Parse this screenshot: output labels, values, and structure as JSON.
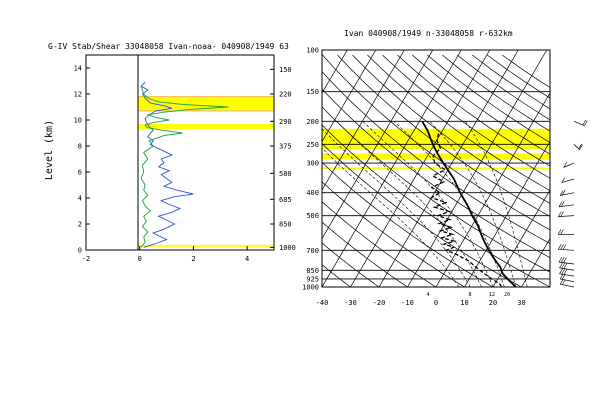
{
  "colors": {
    "background": "#ffffff",
    "highlight": "#ffff00",
    "highlight_edge": "#f5c060",
    "stability": "#2a55d6",
    "shear": "#1aa040",
    "axes": "#000000"
  },
  "chart_data": [
    {
      "type": "line",
      "title": "G-IV Stab/Shear 33048058 Ivan-noaa- 040908/1949 63",
      "ylabel": "Level (km)",
      "xlim": [
        -2,
        5
      ],
      "ylim": [
        0,
        15
      ],
      "x_ticks": [
        "-2",
        "0",
        "2",
        "4"
      ],
      "y_ticks": [
        "0",
        "2",
        "4",
        "6",
        "8",
        "10",
        "12",
        "14"
      ],
      "right_ticks": [
        {
          "label": "1000",
          "km": 0.2
        },
        {
          "label": "850",
          "km": 2.0
        },
        {
          "label": "685",
          "km": 3.9
        },
        {
          "label": "580",
          "km": 5.9
        },
        {
          "label": "375",
          "km": 8.0
        },
        {
          "label": "290",
          "km": 9.9
        },
        {
          "label": "220",
          "km": 12.0
        },
        {
          "label": "150",
          "km": 13.9
        }
      ],
      "highlight_bands_km": [
        [
          10.7,
          11.8
        ],
        [
          9.3,
          9.7
        ],
        [
          0.25,
          0.4
        ]
      ],
      "series": [
        {
          "color": "#2a55d6",
          "km": [
            0.2,
            0.5,
            0.8,
            1.0,
            1.3,
            1.6,
            2.0,
            2.3,
            2.6,
            2.9,
            3.2,
            3.5,
            3.8,
            4.1,
            4.3,
            4.6,
            4.9,
            5.2,
            5.5,
            5.8,
            6.1,
            6.4,
            6.7,
            7.0,
            7.3,
            7.6,
            7.9,
            8.1,
            8.4,
            8.7,
            9.0,
            9.2,
            9.5,
            9.8,
            10.1,
            10.4,
            10.7,
            10.9,
            11.1,
            11.3,
            11.5,
            11.7,
            12.0,
            12.3,
            12.6,
            12.9
          ],
          "values": [
            0.15,
            0.6,
            1.0,
            0.8,
            0.5,
            0.9,
            1.3,
            1.0,
            0.7,
            1.2,
            1.5,
            1.1,
            0.8,
            1.3,
            2.0,
            1.4,
            0.9,
            1.2,
            1.0,
            0.8,
            1.1,
            0.7,
            0.9,
            0.8,
            1.2,
            0.9,
            0.6,
            0.4,
            0.5,
            0.3,
            0.4,
            0.5,
            0.35,
            0.25,
            0.2,
            0.35,
            0.6,
            1.2,
            0.9,
            0.4,
            0.3,
            0.2,
            0.1,
            0.3,
            0.05,
            0.2
          ]
        },
        {
          "color": "#1aa040",
          "km": [
            0.2,
            0.6,
            1.0,
            1.4,
            1.8,
            2.2,
            2.6,
            3.0,
            3.4,
            3.8,
            4.2,
            4.6,
            5.0,
            5.5,
            6.0,
            6.5,
            7.0,
            7.5,
            8.0,
            8.4,
            8.8,
            9.0,
            9.2,
            9.4,
            9.6,
            9.8,
            10.0,
            10.2,
            10.4,
            10.6,
            10.8,
            11.0,
            11.2,
            11.4,
            11.6,
            11.8,
            12.0,
            12.3,
            12.6
          ],
          "values": [
            0.05,
            0.2,
            0.15,
            0.3,
            0.1,
            0.25,
            0.15,
            0.4,
            0.2,
            0.1,
            0.3,
            0.15,
            0.2,
            0.05,
            0.15,
            0.1,
            0.3,
            0.15,
            0.5,
            0.35,
            0.9,
            1.6,
            0.9,
            0.3,
            0.2,
            0.5,
            1.1,
            0.6,
            0.3,
            0.9,
            1.8,
            3.3,
            1.6,
            0.7,
            0.4,
            0.25,
            0.15,
            0.1,
            0.05
          ]
        }
      ]
    },
    {
      "type": "line",
      "title": "Ivan 040908/1949 n-33048058 r-632km",
      "xlim": [
        -40,
        40
      ],
      "x_ticks": [
        "-40",
        "-30",
        "-20",
        "-10",
        "0",
        "10",
        "20",
        "30"
      ],
      "isobars": [
        {
          "p": 100,
          "label": "100"
        },
        {
          "p": 150,
          "label": "150"
        },
        {
          "p": 200,
          "label": "200"
        },
        {
          "p": 250,
          "label": "250"
        },
        {
          "p": 300,
          "label": "300"
        },
        {
          "p": 400,
          "label": "400"
        },
        {
          "p": 500,
          "label": "500"
        },
        {
          "p": 700,
          "label": "700"
        },
        {
          "p": 850,
          "label": "850"
        },
        {
          "p": 925,
          "label": "925"
        },
        {
          "p": 1000,
          "label": "1000"
        }
      ],
      "highlight_bands_hpa": [
        [
          215,
          262
        ],
        [
          273,
          290
        ],
        [
          313,
          318
        ]
      ],
      "mixing_ratio_labels": [
        "4",
        "8",
        "12",
        "20"
      ],
      "temperature": {
        "p": [
          1000,
          975,
          950,
          925,
          900,
          875,
          850,
          825,
          800,
          775,
          750,
          725,
          700,
          650,
          600,
          550,
          500,
          450,
          400,
          350,
          300,
          280,
          260,
          240,
          220,
          200
        ],
        "t": [
          28,
          26.5,
          25,
          23.5,
          22,
          20.5,
          19.5,
          18.5,
          17,
          15.5,
          14,
          12.5,
          11,
          8,
          5,
          2,
          -2,
          -6,
          -11,
          -16,
          -23,
          -26,
          -29,
          -32,
          -35,
          -39
        ]
      },
      "dewpoint": {
        "p": [
          1000,
          975,
          950,
          925,
          900,
          875,
          850,
          825,
          800,
          775,
          750,
          725,
          700,
          680,
          660,
          640,
          620,
          600,
          580,
          560,
          540,
          520,
          500,
          480,
          460,
          440,
          420,
          400,
          380,
          360,
          340,
          320,
          300,
          280,
          260,
          240,
          220
        ],
        "td": [
          23,
          22,
          20,
          18,
          16,
          14,
          12,
          10,
          8,
          6,
          3,
          0,
          -4,
          -2,
          -6,
          -3,
          -8,
          -5,
          -10,
          -7,
          -12,
          -9,
          -14,
          -11,
          -17,
          -14,
          -20,
          -18,
          -22,
          -19,
          -24,
          -21,
          -26,
          -28,
          -27,
          -30,
          -31
        ]
      },
      "wind_profile": [
        {
          "p": 1000,
          "spd": 15,
          "dir": 60
        },
        {
          "p": 950,
          "spd": 20,
          "dir": 60
        },
        {
          "p": 900,
          "spd": 25,
          "dir": 65
        },
        {
          "p": 850,
          "spd": 30,
          "dir": 65
        },
        {
          "p": 800,
          "spd": 30,
          "dir": 70
        },
        {
          "p": 700,
          "spd": 25,
          "dir": 80
        },
        {
          "p": 600,
          "spd": 20,
          "dir": 90
        },
        {
          "p": 500,
          "spd": 20,
          "dir": 100
        },
        {
          "p": 450,
          "spd": 15,
          "dir": 110
        },
        {
          "p": 400,
          "spd": 15,
          "dir": 120
        },
        {
          "p": 350,
          "spd": 10,
          "dir": 130
        },
        {
          "p": 300,
          "spd": 10,
          "dir": 140
        },
        {
          "p": 250,
          "spd": 15,
          "dir": 200
        },
        {
          "p": 200,
          "spd": 20,
          "dir": 220
        }
      ]
    }
  ]
}
